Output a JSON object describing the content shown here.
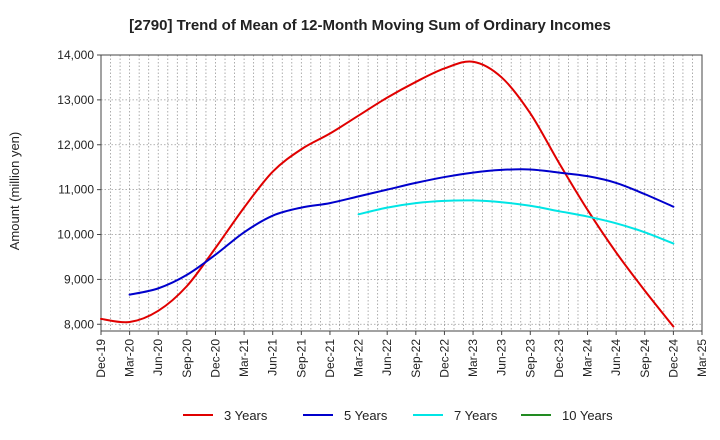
{
  "chart_data": {
    "type": "line",
    "title": "[2790]  Trend of Mean of 12-Month Moving Sum of Ordinary Incomes",
    "xlabel": "",
    "ylabel": "Amount (million yen)",
    "ylim": [
      7850,
      14000
    ],
    "yticks": [
      8000,
      9000,
      10000,
      11000,
      12000,
      13000,
      14000
    ],
    "ytick_labels": [
      "8,000",
      "9,000",
      "10,000",
      "11,000",
      "12,000",
      "13,000",
      "14,000"
    ],
    "x_categories": [
      "Dec-19",
      "Mar-20",
      "Jun-20",
      "Sep-20",
      "Dec-20",
      "Mar-21",
      "Jun-21",
      "Sep-21",
      "Dec-21",
      "Mar-22",
      "Jun-22",
      "Sep-22",
      "Dec-22",
      "Mar-23",
      "Jun-23",
      "Sep-23",
      "Dec-23",
      "Mar-24",
      "Jun-24",
      "Sep-24",
      "Dec-24",
      "Mar-25"
    ],
    "grid": true,
    "legend_position": "bottom",
    "series": [
      {
        "name": "3 Years",
        "color": "#e00000",
        "values": [
          8120,
          8050,
          8300,
          8850,
          9700,
          10600,
          11400,
          11900,
          12250,
          12650,
          13050,
          13400,
          13700,
          13850,
          13500,
          12700,
          11600,
          10550,
          9600,
          8750,
          7950,
          null
        ]
      },
      {
        "name": "5 Years",
        "color": "#0000cc",
        "values": [
          null,
          8660,
          8800,
          9100,
          9550,
          10050,
          10420,
          10600,
          10700,
          10850,
          11000,
          11150,
          11280,
          11380,
          11440,
          11450,
          11380,
          11300,
          11150,
          10900,
          10620,
          null
        ]
      },
      {
        "name": "7 Years",
        "color": "#00e5e5",
        "values": [
          null,
          null,
          null,
          null,
          null,
          null,
          null,
          null,
          null,
          10450,
          10600,
          10700,
          10750,
          10760,
          10720,
          10640,
          10520,
          10400,
          10250,
          10050,
          9800,
          null
        ]
      },
      {
        "name": "10 Years",
        "color": "#228b22",
        "values": [
          null,
          null,
          null,
          null,
          null,
          null,
          null,
          null,
          null,
          null,
          null,
          null,
          null,
          null,
          null,
          null,
          null,
          null,
          null,
          null,
          null,
          null
        ]
      }
    ]
  }
}
